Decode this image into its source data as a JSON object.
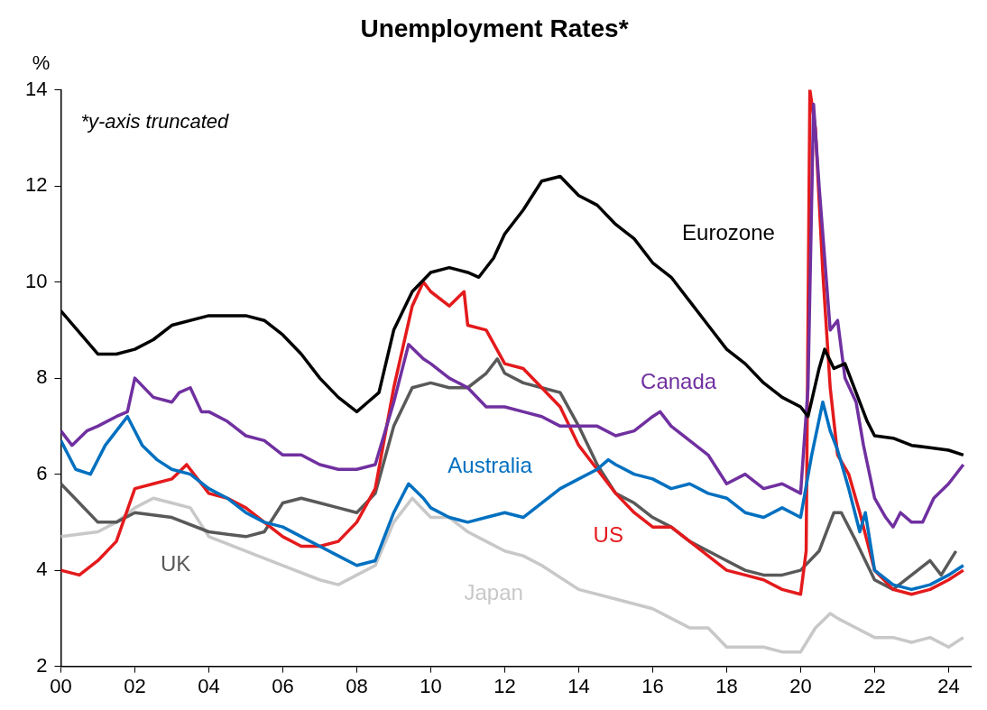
{
  "chart_data": {
    "type": "line",
    "title": "Unemployment Rates*",
    "ylabel": "%",
    "annotations": [
      "*y-axis truncated"
    ],
    "grid": false,
    "legend": false,
    "marker": "none",
    "line_style": "solid",
    "xlim": [
      2000,
      2024.6
    ],
    "xticks": [
      {
        "value": 2000,
        "label": "00"
      },
      {
        "value": 2002,
        "label": "02"
      },
      {
        "value": 2004,
        "label": "04"
      },
      {
        "value": 2006,
        "label": "06"
      },
      {
        "value": 2008,
        "label": "08"
      },
      {
        "value": 2010,
        "label": "10"
      },
      {
        "value": 2012,
        "label": "12"
      },
      {
        "value": 2014,
        "label": "14"
      },
      {
        "value": 2016,
        "label": "16"
      },
      {
        "value": 2018,
        "label": "18"
      },
      {
        "value": 2020,
        "label": "20"
      },
      {
        "value": 2022,
        "label": "22"
      },
      {
        "value": 2024,
        "label": "24"
      }
    ],
    "ylim": [
      2,
      14
    ],
    "yticks": [
      2,
      4,
      6,
      8,
      10,
      12,
      14
    ],
    "series": [
      {
        "name": "Eurozone",
        "color": "#000000",
        "x": [
          2000,
          2001,
          2001.5,
          2002,
          2002.5,
          2003,
          2004,
          2005,
          2005.5,
          2006,
          2006.5,
          2007,
          2007.5,
          2008,
          2008.3,
          2008.6,
          2009,
          2009.5,
          2010,
          2010.5,
          2011,
          2011.3,
          2011.7,
          2012,
          2012.5,
          2013,
          2013.5,
          2014,
          2014.5,
          2015,
          2015.5,
          2016,
          2016.5,
          2017,
          2017.5,
          2018,
          2018.5,
          2019,
          2019.5,
          2020,
          2020.2,
          2020.5,
          2020.65,
          2020.9,
          2021.2,
          2021.5,
          2021.8,
          2022,
          2022.5,
          2023,
          2023.5,
          2024,
          2024.4
        ],
        "values": [
          9.4,
          8.5,
          8.5,
          8.6,
          8.8,
          9.1,
          9.3,
          9.3,
          9.2,
          8.9,
          8.5,
          8.0,
          7.6,
          7.3,
          7.5,
          7.7,
          9.0,
          9.8,
          10.2,
          10.3,
          10.2,
          10.1,
          10.5,
          11.0,
          11.5,
          12.1,
          12.2,
          11.8,
          11.6,
          11.2,
          10.9,
          10.4,
          10.1,
          9.6,
          9.1,
          8.6,
          8.3,
          7.9,
          7.6,
          7.4,
          7.2,
          8.2,
          8.6,
          8.2,
          8.3,
          7.7,
          7.1,
          6.8,
          6.75,
          6.6,
          6.55,
          6.5,
          6.4
        ]
      },
      {
        "name": "Canada",
        "color": "#7030a0",
        "x": [
          2000,
          2000.3,
          2000.7,
          2001,
          2001.5,
          2001.8,
          2002,
          2002.5,
          2003,
          2003.2,
          2003.5,
          2003.8,
          2004,
          2004.5,
          2005,
          2005.5,
          2006,
          2006.5,
          2007,
          2007.5,
          2008,
          2008.5,
          2009,
          2009.4,
          2009.8,
          2010,
          2010.5,
          2011,
          2011.5,
          2012,
          2012.5,
          2013,
          2013.5,
          2014,
          2014.5,
          2015,
          2015.5,
          2016,
          2016.2,
          2016.5,
          2017,
          2017.5,
          2018,
          2018.5,
          2019,
          2019.5,
          2020,
          2020.2,
          2020.35,
          2020.5,
          2020.8,
          2021,
          2021.2,
          2021.5,
          2021.7,
          2022,
          2022.3,
          2022.5,
          2022.7,
          2023,
          2023.3,
          2023.6,
          2024,
          2024.4
        ],
        "values": [
          6.9,
          6.6,
          6.9,
          7.0,
          7.2,
          7.3,
          8.0,
          7.6,
          7.5,
          7.7,
          7.8,
          7.3,
          7.3,
          7.1,
          6.8,
          6.7,
          6.4,
          6.4,
          6.2,
          6.1,
          6.1,
          6.2,
          7.5,
          8.7,
          8.4,
          8.3,
          8.0,
          7.8,
          7.4,
          7.4,
          7.3,
          7.2,
          7.0,
          7.0,
          7.0,
          6.8,
          6.9,
          7.2,
          7.3,
          7.0,
          6.7,
          6.4,
          5.8,
          6.0,
          5.7,
          5.8,
          5.6,
          7.8,
          13.7,
          12.0,
          9.0,
          9.2,
          8.0,
          7.5,
          6.6,
          5.5,
          5.1,
          4.9,
          5.2,
          5.0,
          5.0,
          5.5,
          5.8,
          6.2
        ]
      },
      {
        "name": "Australia",
        "color": "#0070c0",
        "x": [
          2000,
          2000.4,
          2000.8,
          2001.2,
          2001.6,
          2001.8,
          2002.2,
          2002.6,
          2003,
          2003.5,
          2004,
          2004.5,
          2005,
          2005.5,
          2006,
          2006.5,
          2007,
          2007.5,
          2008,
          2008.5,
          2009,
          2009.4,
          2009.8,
          2010,
          2010.5,
          2011,
          2011.5,
          2012,
          2012.5,
          2013,
          2013.5,
          2014,
          2014.5,
          2014.8,
          2015,
          2015.5,
          2016,
          2016.5,
          2017,
          2017.5,
          2018,
          2018.5,
          2019,
          2019.5,
          2020,
          2020.3,
          2020.6,
          2020.8,
          2021,
          2021.3,
          2021.6,
          2021.75,
          2022,
          2022.5,
          2023,
          2023.5,
          2024,
          2024.4
        ],
        "values": [
          6.7,
          6.1,
          6.0,
          6.6,
          7.0,
          7.2,
          6.6,
          6.3,
          6.1,
          6.0,
          5.7,
          5.5,
          5.2,
          5.0,
          4.9,
          4.7,
          4.5,
          4.3,
          4.1,
          4.2,
          5.2,
          5.8,
          5.5,
          5.3,
          5.1,
          5.0,
          5.1,
          5.2,
          5.1,
          5.4,
          5.7,
          5.9,
          6.1,
          6.3,
          6.2,
          6.0,
          5.9,
          5.7,
          5.8,
          5.6,
          5.5,
          5.2,
          5.1,
          5.3,
          5.1,
          6.4,
          7.5,
          6.9,
          6.5,
          5.7,
          4.8,
          5.2,
          4.0,
          3.7,
          3.6,
          3.7,
          3.9,
          4.1
        ]
      },
      {
        "name": "US",
        "color": "#e41a1c",
        "x": [
          2000,
          2000.5,
          2001,
          2001.5,
          2002,
          2002.5,
          2003,
          2003.4,
          2003.8,
          2004,
          2004.5,
          2005,
          2005.5,
          2006,
          2006.5,
          2007,
          2007.5,
          2008,
          2008.5,
          2009,
          2009.5,
          2009.8,
          2010,
          2010.5,
          2010.9,
          2011,
          2011.5,
          2012,
          2012.5,
          2013,
          2013.5,
          2014,
          2014.5,
          2015,
          2015.5,
          2016,
          2016.5,
          2017,
          2017.5,
          2018,
          2018.5,
          2019,
          2019.5,
          2020,
          2020.15,
          2020.25,
          2020.4,
          2020.6,
          2020.8,
          2021,
          2021.3,
          2021.6,
          2022,
          2022.5,
          2023,
          2023.5,
          2024,
          2024.4
        ],
        "values": [
          4.0,
          3.9,
          4.2,
          4.6,
          5.7,
          5.8,
          5.9,
          6.2,
          5.8,
          5.6,
          5.5,
          5.3,
          5.0,
          4.7,
          4.5,
          4.5,
          4.6,
          5.0,
          5.7,
          7.8,
          9.5,
          10.0,
          9.8,
          9.5,
          9.8,
          9.1,
          9.0,
          8.3,
          8.2,
          7.8,
          7.4,
          6.6,
          6.1,
          5.6,
          5.2,
          4.9,
          4.9,
          4.6,
          4.3,
          4.0,
          3.9,
          3.8,
          3.6,
          3.5,
          4.4,
          14,
          13.2,
          10.2,
          7.8,
          6.4,
          6.0,
          5.2,
          4.0,
          3.6,
          3.5,
          3.6,
          3.8,
          4.0
        ]
      },
      {
        "name": "UK",
        "color": "#595959",
        "x": [
          2000,
          2000.5,
          2001,
          2001.5,
          2002,
          2003,
          2004,
          2005,
          2005.5,
          2006,
          2006.5,
          2007,
          2007.5,
          2008,
          2008.5,
          2009,
          2009.5,
          2010,
          2010.5,
          2011,
          2011.5,
          2011.8,
          2012,
          2012.5,
          2013,
          2013.5,
          2014,
          2014.5,
          2015,
          2015.5,
          2016,
          2016.5,
          2017,
          2017.5,
          2018,
          2018.5,
          2019,
          2019.5,
          2020,
          2020.5,
          2020.9,
          2021.1,
          2021.5,
          2022,
          2022.5,
          2023,
          2023.5,
          2023.8,
          2024.2
        ],
        "values": [
          5.8,
          5.4,
          5.0,
          5.0,
          5.2,
          5.1,
          4.8,
          4.7,
          4.8,
          5.4,
          5.5,
          5.4,
          5.3,
          5.2,
          5.6,
          7.0,
          7.8,
          7.9,
          7.8,
          7.8,
          8.1,
          8.4,
          8.1,
          7.9,
          7.8,
          7.7,
          7.0,
          6.2,
          5.6,
          5.4,
          5.1,
          4.9,
          4.6,
          4.4,
          4.2,
          4.0,
          3.9,
          3.9,
          4.0,
          4.4,
          5.2,
          5.2,
          4.6,
          3.8,
          3.6,
          3.9,
          4.2,
          3.9,
          4.4
        ]
      },
      {
        "name": "Japan",
        "color": "#c8c8c8",
        "x": [
          2000,
          2001,
          2001.5,
          2002,
          2002.5,
          2003,
          2003.5,
          2004,
          2005,
          2006,
          2007,
          2007.5,
          2008,
          2008.5,
          2009,
          2009.5,
          2010,
          2010.5,
          2011,
          2011.5,
          2012,
          2012.5,
          2013,
          2014,
          2015,
          2016,
          2016.5,
          2017,
          2017.5,
          2018,
          2018.5,
          2019,
          2019.5,
          2020,
          2020.4,
          2020.8,
          2021,
          2021.5,
          2022,
          2022.5,
          2023,
          2023.5,
          2024,
          2024.4
        ],
        "values": [
          4.7,
          4.8,
          5.0,
          5.3,
          5.5,
          5.4,
          5.3,
          4.7,
          4.4,
          4.1,
          3.8,
          3.7,
          3.9,
          4.1,
          5.0,
          5.5,
          5.1,
          5.1,
          4.8,
          4.6,
          4.4,
          4.3,
          4.1,
          3.6,
          3.4,
          3.2,
          3.0,
          2.8,
          2.8,
          2.4,
          2.4,
          2.4,
          2.3,
          2.3,
          2.8,
          3.1,
          3.0,
          2.8,
          2.6,
          2.6,
          2.5,
          2.6,
          2.4,
          2.6
        ]
      }
    ]
  }
}
